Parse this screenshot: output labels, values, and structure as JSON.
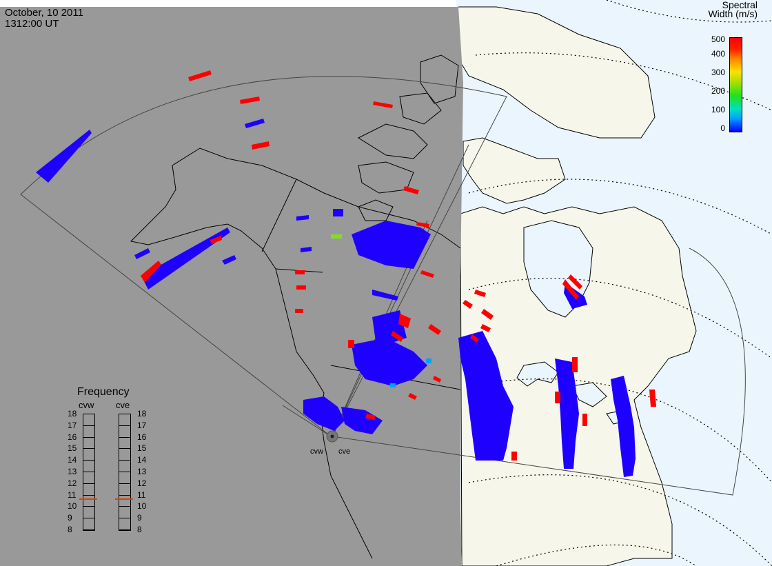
{
  "header": {
    "date": "October, 10 2011",
    "time": "1312:00 UT"
  },
  "colorbar": {
    "title_line1": "Spectral",
    "title_line2": "Width (m/s)",
    "ticks": [
      "500",
      "400",
      "300",
      "200",
      "100",
      "0"
    ]
  },
  "frequency_panel": {
    "title": "Frequency",
    "radars": [
      "cvw",
      "cve"
    ],
    "ticks": [
      "18",
      "17",
      "16",
      "15",
      "14",
      "13",
      "12",
      "11",
      "10",
      "9",
      "8"
    ],
    "cvw_frequency_mhz": 10.6,
    "cve_frequency_mhz": 10.6
  },
  "radar_labels": {
    "west": "cvw",
    "east": "cve"
  },
  "colors": {
    "night_shade": "#999999",
    "day_land": "#f7f6ea",
    "day_ocean": "#eaf5fd",
    "low_width": "#1e00ff",
    "high_width": "#ff0000"
  }
}
